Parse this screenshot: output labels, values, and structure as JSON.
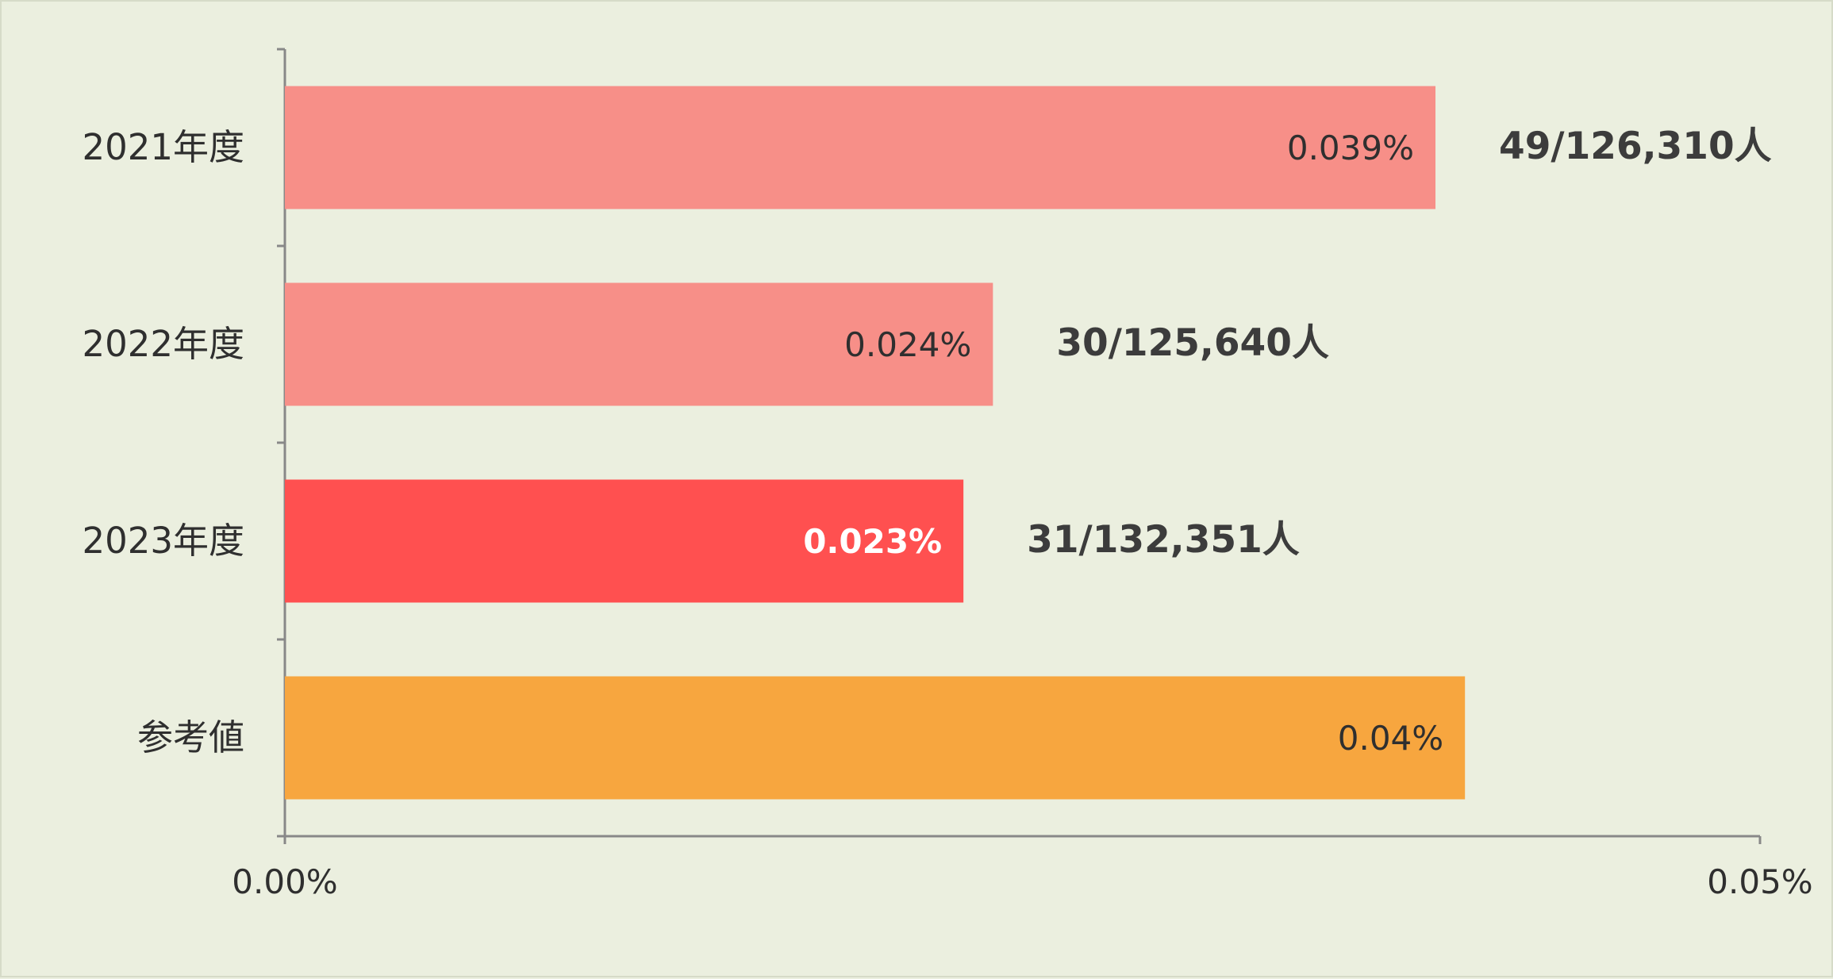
{
  "chart_data": {
    "type": "bar",
    "orientation": "horizontal",
    "categories": [
      "2021年度",
      "2022年度",
      "2023年度",
      "参考値"
    ],
    "values": [
      0.039,
      0.024,
      0.023,
      0.04
    ],
    "value_labels": [
      "0.039%",
      "0.024%",
      "0.023%",
      "0.04%"
    ],
    "annotations": [
      "49/126,310人",
      "30/125,640人",
      "31/132,351人",
      ""
    ],
    "bar_colors": [
      "#f78f88",
      "#f78f88",
      "#ff5050",
      "#f7a63f"
    ],
    "value_label_colors": [
      "#2f2f2f",
      "#2f2f2f",
      "#ffffff",
      "#2f2f2f"
    ],
    "value_label_bold": [
      false,
      false,
      true,
      false
    ],
    "xlim": [
      0,
      0.05
    ],
    "xticks": [
      0,
      0.05
    ],
    "xtick_labels": [
      "0.00%",
      "0.05%"
    ],
    "grid": false,
    "legend": "none",
    "background_color": "#ebefdf",
    "axis_color": "#888888"
  }
}
